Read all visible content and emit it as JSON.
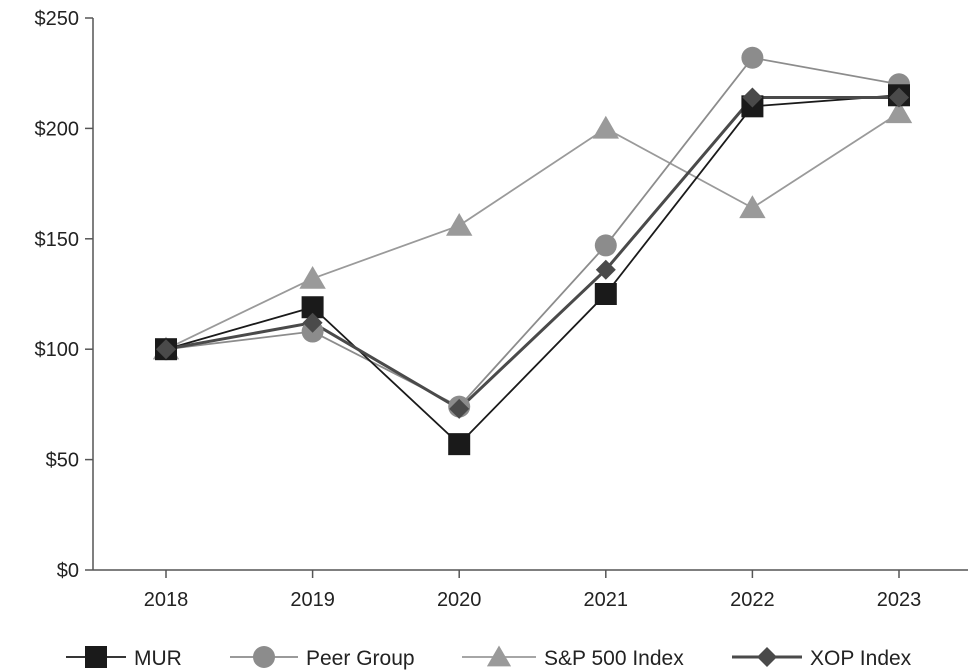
{
  "chart_data": {
    "type": "line",
    "title": "",
    "xlabel": "",
    "ylabel": "",
    "categories": [
      "2018",
      "2019",
      "2020",
      "2021",
      "2022",
      "2023"
    ],
    "ylim": [
      0,
      250
    ],
    "yticks": [
      0,
      50,
      100,
      150,
      200,
      250
    ],
    "ytick_labels": [
      "$0",
      "$50",
      "$100",
      "$150",
      "$200",
      "$250"
    ],
    "grid": false,
    "legend_position": "bottom",
    "series": [
      {
        "name": "MUR",
        "values": [
          100,
          119,
          57,
          125,
          210,
          215
        ],
        "marker": "square",
        "color": "#1a1a1a",
        "line_color": "#1a1a1a"
      },
      {
        "name": "Peer Group",
        "values": [
          100,
          108,
          74,
          147,
          232,
          220
        ],
        "marker": "circle",
        "color": "#8c8c8c",
        "line_color": "#8c8c8c"
      },
      {
        "name": "S&P 500 Index",
        "values": [
          100,
          132,
          156,
          200,
          164,
          207
        ],
        "marker": "triangle",
        "color": "#9a9a9a",
        "line_color": "#9a9a9a"
      },
      {
        "name": "XOP Index",
        "values": [
          100,
          112,
          73,
          136,
          214,
          214
        ],
        "marker": "diamond",
        "color": "#4a4a4a",
        "line_color": "#4a4a4a"
      }
    ]
  }
}
